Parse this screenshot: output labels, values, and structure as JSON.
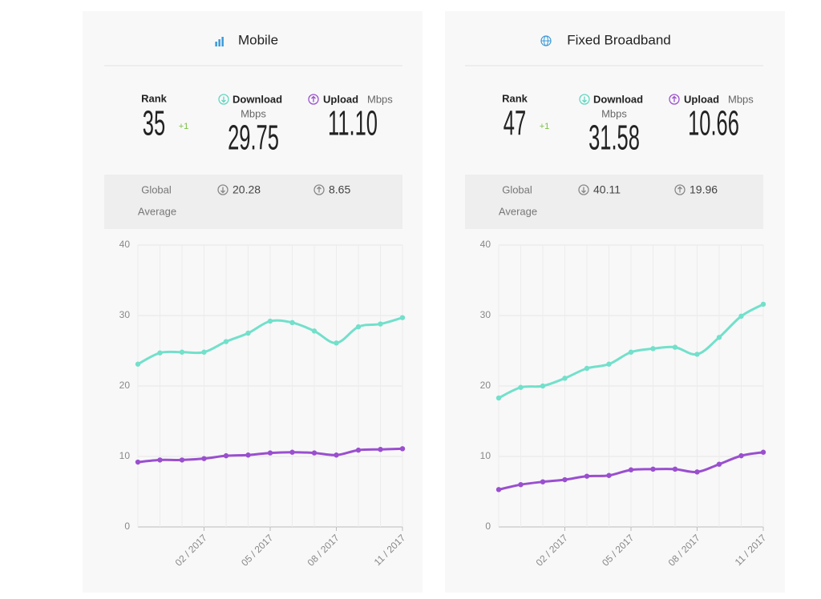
{
  "panels": [
    {
      "title": "Mobile",
      "rank_label": "Rank",
      "rank": "35",
      "rank_change": "+1",
      "download_label": "Download",
      "download_unit": "Mbps",
      "download": "29.75",
      "upload_label": "Upload",
      "upload_unit": "Mbps",
      "upload": "11.10",
      "global_label": [
        "Global",
        "Average"
      ],
      "global_download": "20.28",
      "global_upload": "8.65"
    },
    {
      "title": "Fixed Broadband",
      "rank_label": "Rank",
      "rank": "47",
      "rank_change": "+1",
      "download_label": "Download",
      "download_unit": "Mbps",
      "download": "31.58",
      "upload_label": "Upload",
      "upload_unit": "Mbps",
      "upload": "10.66",
      "global_label": [
        "Global",
        "Average"
      ],
      "global_download": "40.11",
      "global_upload": "19.96"
    }
  ],
  "chart_data": [
    {
      "type": "line",
      "categories": [
        null,
        null,
        null,
        "02 / 2017",
        null,
        null,
        "05 / 2017",
        null,
        null,
        "08 / 2017",
        null,
        null,
        "11 / 2017"
      ],
      "series": [
        {
          "color": "#72e0cb",
          "values": [
            23.1,
            24.7,
            24.8,
            24.8,
            26.3,
            27.5,
            29.2,
            29.0,
            27.8,
            26.1,
            28.4,
            28.8,
            29.7
          ]
        },
        {
          "color": "#9a4fcf",
          "values": [
            9.2,
            9.5,
            9.5,
            9.7,
            10.1,
            10.2,
            10.5,
            10.6,
            10.5,
            10.2,
            10.9,
            11.0,
            11.1
          ]
        }
      ],
      "ylim": [
        0,
        40
      ],
      "yticks": [
        0,
        10,
        20,
        30,
        40
      ],
      "grid": true
    },
    {
      "type": "line",
      "categories": [
        null,
        null,
        null,
        "02 / 2017",
        null,
        null,
        "05 / 2017",
        null,
        null,
        "08 / 2017",
        null,
        null,
        "11 / 2017"
      ],
      "series": [
        {
          "color": "#72e0cb",
          "values": [
            18.3,
            19.8,
            20.0,
            21.1,
            22.5,
            23.1,
            24.8,
            25.3,
            25.5,
            24.5,
            26.9,
            29.9,
            31.6
          ]
        },
        {
          "color": "#9a4fcf",
          "values": [
            5.3,
            6.0,
            6.4,
            6.7,
            7.2,
            7.3,
            8.1,
            8.2,
            8.2,
            7.8,
            8.9,
            10.1,
            10.6
          ]
        }
      ],
      "ylim": [
        0,
        40
      ],
      "yticks": [
        0,
        10,
        20,
        30,
        40
      ],
      "grid": true
    }
  ]
}
